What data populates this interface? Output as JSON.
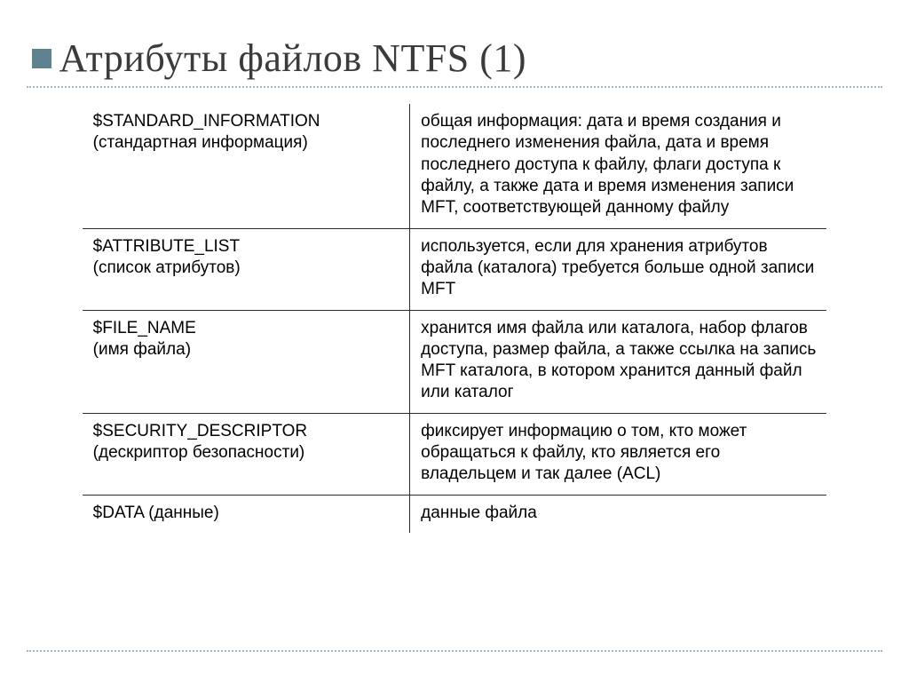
{
  "colors": {
    "accent": "#5f8291",
    "rule": "#9fb5bf",
    "text": "#000000",
    "title": "#3b3b3b",
    "table_border": "#2b2b2b",
    "background": "#ffffff"
  },
  "title": "Атрибуты файлов NTFS (1)",
  "table": {
    "col_widths_pct": [
      44,
      56
    ],
    "rows": [
      {
        "name": "$STANDARD_INFORMATION",
        "sub": "(стандартная информация)",
        "desc": "общая информация: дата и время создания и последнего изменения файла, дата и время последнего доступа к файлу, флаги доступа к файлу, а также дата и время изменения записи MFT, соответствующей данному файлу"
      },
      {
        "name": "$ATTRIBUTE_LIST",
        "sub": "(список атрибутов)",
        "desc": "используется, если для хранения атрибутов файла (каталога) требуется больше одной записи MFT"
      },
      {
        "name": "$FILE_NAME",
        "sub": "(имя файла)",
        "desc": "хранится имя файла или каталога, набор флагов доступа, размер файла, а также ссылка на запись MFT каталога, в котором хранится данный файл или каталог"
      },
      {
        "name": "$SECURITY_DESCRIPTOR",
        "sub": "(дескриптор безопасности)",
        "desc": "фиксирует информацию о том, кто может обращаться к файлу, кто является его владельцем и так далее (ACL)"
      },
      {
        "name": "$DATA (данные)",
        "sub": "",
        "desc": "данные файла"
      }
    ]
  }
}
